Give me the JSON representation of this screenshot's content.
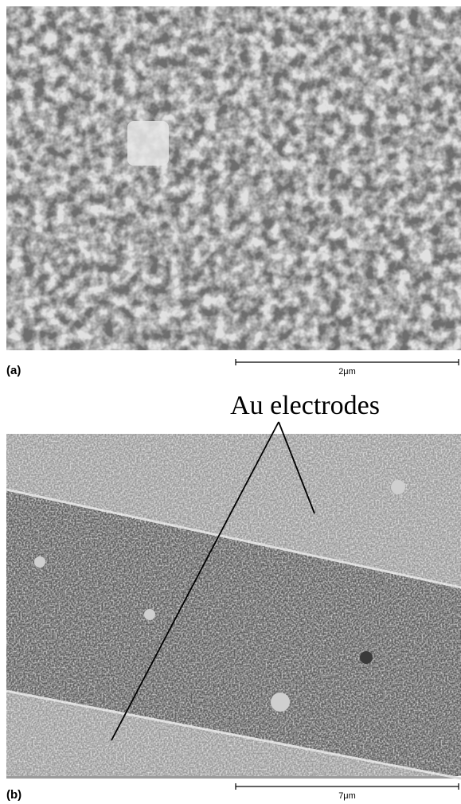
{
  "panels": [
    {
      "label": "(a)",
      "scale": "2μm"
    },
    {
      "label": "(b)",
      "scale": "7μm",
      "annotation": "Au electrodes"
    }
  ]
}
